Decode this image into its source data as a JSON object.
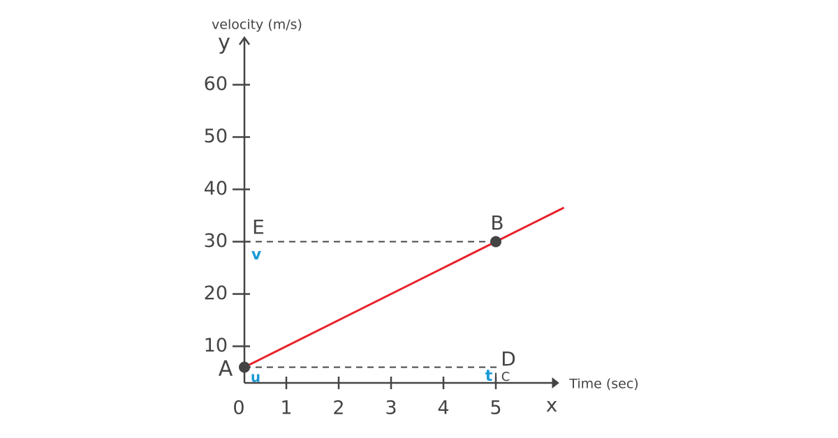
{
  "chart_data": {
    "type": "line",
    "y_axis_title": "velocity (m/s)",
    "x_axis_title": "Time (sec)",
    "x_axis_letter": "x",
    "y_axis_letter": "y",
    "x": [
      0.2,
      5,
      6.3
    ],
    "series": [
      {
        "name": "velocity",
        "color": "#e8212a",
        "values": [
          6,
          30,
          36.5
        ]
      }
    ],
    "xlim": [
      0.2,
      6.2
    ],
    "xticks": [
      0,
      1,
      2,
      3,
      4,
      5
    ],
    "ylim": [
      3,
      69
    ],
    "yticks": [
      10,
      20,
      30,
      40,
      50,
      60
    ],
    "annotations": [
      {
        "text": "A",
        "color": "#444444"
      },
      {
        "text": "B",
        "color": "#444444"
      },
      {
        "text": "E",
        "color": "#444444"
      },
      {
        "text": "D",
        "color": "#444444"
      },
      {
        "text": "C",
        "color": "#444444"
      },
      {
        "text": "u",
        "color": "#1a9ad6"
      },
      {
        "text": "v",
        "color": "#1a9ad6"
      },
      {
        "text": "t",
        "color": "#1a9ad6"
      }
    ]
  }
}
